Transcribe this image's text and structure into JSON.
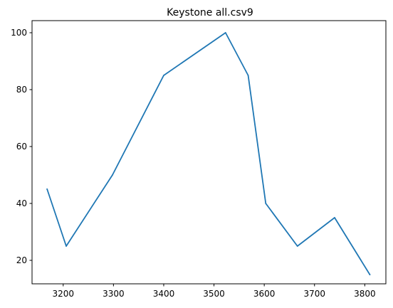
{
  "chart_data": {
    "type": "line",
    "title": "Keystone all.csv9",
    "xlabel": "",
    "ylabel": "",
    "xlim": [
      3138,
      3842
    ],
    "ylim": [
      11.75,
      104.25
    ],
    "xticks": [
      3200,
      3300,
      3400,
      3500,
      3600,
      3700,
      3800
    ],
    "yticks": [
      20,
      40,
      60,
      80,
      100
    ],
    "grid": false,
    "series": [
      {
        "color": "#1f77b4",
        "x": [
          3168,
          3206,
          3298,
          3400,
          3523,
          3568,
          3603,
          3666,
          3740,
          3810
        ],
        "y": [
          45,
          25,
          50,
          85,
          100,
          85,
          40,
          25,
          35,
          15
        ]
      }
    ]
  }
}
